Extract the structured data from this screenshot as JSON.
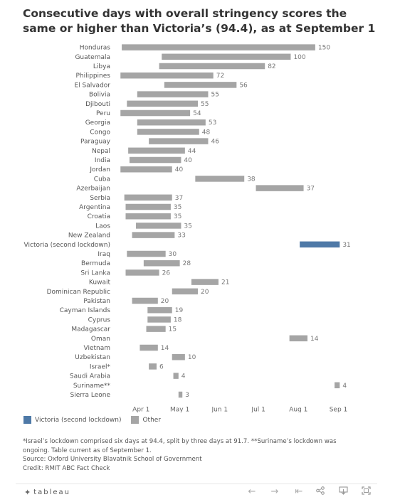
{
  "chart_data": {
    "type": "bar",
    "title": "Consecutive days with overall stringency scores the same or higher than Victoria’s (94.4), as at September 1",
    "categories": [
      "Honduras",
      "Guatemala",
      "Libya",
      "Philippines",
      "El Salvador",
      "Bolivia",
      "Djibouti",
      "Peru",
      "Georgia",
      "Congo",
      "Paraguay",
      "Nepal",
      "India",
      "Jordan",
      "Cuba",
      "Azerbaijan",
      "Serbia",
      "Argentina",
      "Croatia",
      "Laos",
      "New Zealand",
      "Victoria (second lockdown)",
      "Iraq",
      "Bermuda",
      "Sri Lanka",
      "Kuwait",
      "Dominican Republic",
      "Pakistan",
      "Cayman Islands",
      "Cyprus",
      "Madagascar",
      "Oman",
      "Vietnam",
      "Uzbekistan",
      "Israel*",
      "Saudi Arabia",
      "Suriname**",
      "Sierra Leone"
    ],
    "values": [
      150,
      100,
      82,
      72,
      56,
      55,
      55,
      54,
      53,
      48,
      46,
      44,
      40,
      40,
      38,
      37,
      37,
      35,
      35,
      35,
      33,
      31,
      30,
      28,
      26,
      21,
      20,
      20,
      19,
      18,
      15,
      14,
      14,
      10,
      6,
      4,
      4,
      3
    ],
    "start_dates": [
      "2020-03-17",
      "2020-04-17",
      "2020-04-15",
      "2020-03-16",
      "2020-04-19",
      "2020-03-29",
      "2020-03-21",
      "2020-03-16",
      "2020-03-29",
      "2020-03-29",
      "2020-04-07",
      "2020-03-22",
      "2020-03-23",
      "2020-03-16",
      "2020-05-13",
      "2020-06-29",
      "2020-03-19",
      "2020-03-20",
      "2020-03-20",
      "2020-03-28",
      "2020-03-25",
      "2020-08-02",
      "2020-03-21",
      "2020-04-03",
      "2020-03-20",
      "2020-05-10",
      "2020-04-25",
      "2020-03-25",
      "2020-04-06",
      "2020-04-06",
      "2020-04-05",
      "2020-07-25",
      "2020-03-31",
      "2020-04-25",
      "2020-04-07",
      "2020-04-26",
      "2020-08-29",
      "2020-04-30"
    ],
    "series": [
      {
        "name": "Victoria (second lockdown)",
        "color": "#4e79a7"
      },
      {
        "name": "Other",
        "color": "#a5a5a5"
      }
    ],
    "highlight": "Victoria (second lockdown)",
    "x_ticks": [
      "Apr 1",
      "May 1",
      "Jun 1",
      "Jul 1",
      "Aug 1",
      "Sep 1"
    ],
    "xlim": [
      "2020-03-12",
      "2020-09-09"
    ],
    "legend_position": "bottom-left",
    "grid": false
  },
  "footnotes": [
    "*Israel’s lockdown comprised six days at 94.4, split by three days at 91.7. **Suriname’s lockdown was",
    "ongoing. Table current as of September 1.",
    "Source: Oxford University Blavatnik School of Government",
    "Credit: RMIT ABC Fact Check"
  ],
  "toolbar": {
    "brand": "tableau",
    "icons": [
      "tableau-logo-icon",
      "undo-icon",
      "redo-icon",
      "revert-icon",
      "share-icon",
      "download-icon",
      "fullscreen-icon"
    ]
  }
}
